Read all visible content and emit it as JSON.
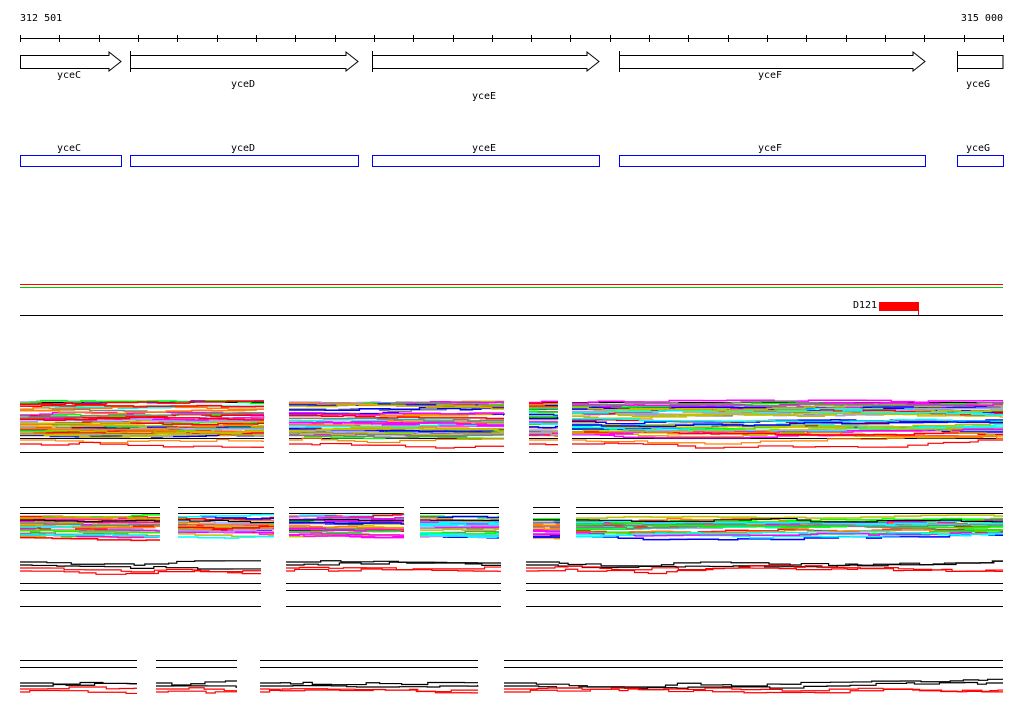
{
  "ruler": {
    "start_label": "312 501",
    "end_label": "315 000"
  },
  "genes": [
    {
      "name": "yceC"
    },
    {
      "name": "yceD"
    },
    {
      "name": "yceE"
    },
    {
      "name": "yceF"
    },
    {
      "name": "yceG"
    }
  ],
  "annotation_track": {
    "feature_label": "D121"
  },
  "colors": {
    "gene_box": "#0000ff",
    "feature": "#ff0000",
    "top_line_red": "#ff0000",
    "top_line_green": "#00cc00",
    "series": [
      "#ff0000",
      "#00ff00",
      "#0000ff",
      "#ff00ff",
      "#00ffff",
      "#ff8000",
      "#c0c000",
      "#808080",
      "#a0a0ff",
      "#000000"
    ]
  }
}
